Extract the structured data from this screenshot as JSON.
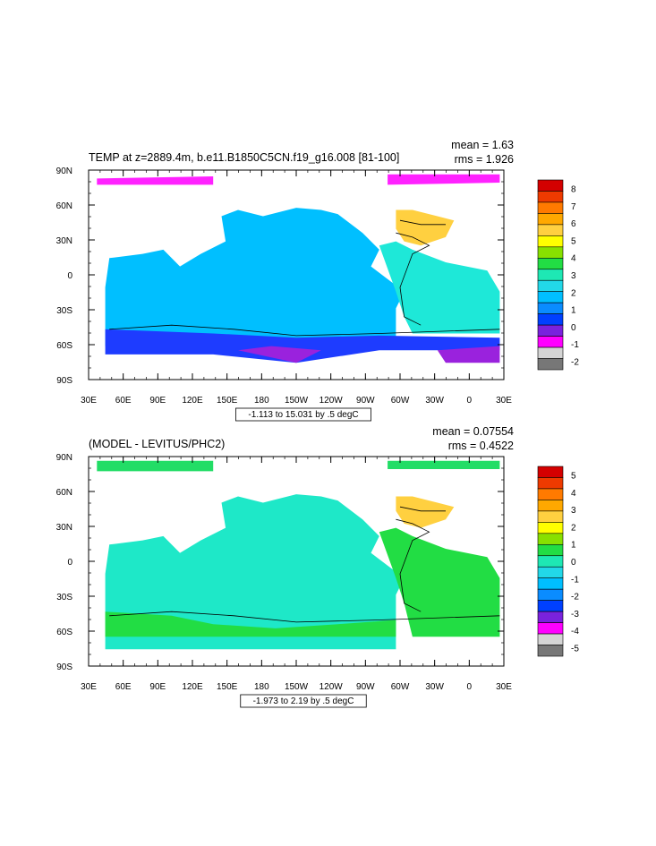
{
  "chart_data": [
    {
      "type": "heatmap",
      "title": "TEMP at z=2889.4m, b.e11.B1850C5CN.f19_g16.008 [81-100]",
      "stats": {
        "mean": "mean = 1.63",
        "rms": "rms = 1.926"
      },
      "range_label": "-1.113 to 15.031 by .5 degC",
      "xticks": [
        "30E",
        "60E",
        "90E",
        "120E",
        "150E",
        "180",
        "150W",
        "120W",
        "90W",
        "60W",
        "30W",
        "0",
        "30E"
      ],
      "yticks": [
        "90N",
        "60N",
        "30N",
        "0",
        "30S",
        "60S",
        "90S"
      ],
      "colorbar": {
        "labels": [
          "8",
          "7",
          "6",
          "5",
          "4",
          "3",
          "2",
          "1",
          "0",
          "-1",
          "-2"
        ],
        "colors": [
          "#d40000",
          "#ee3a00",
          "#ff7a00",
          "#ffa800",
          "#ffd040",
          "#ffff00",
          "#88e000",
          "#22dd44",
          "#1ee8b4",
          "#22d8e8",
          "#00bfff",
          "#0a8cff",
          "#0040ff",
          "#7a22dd",
          "#ff00ff",
          "#d4d4d4",
          "#777777"
        ]
      },
      "regions": [
        {
          "name": "arctic-band",
          "value": -0.8,
          "color": "#ff22ff"
        },
        {
          "name": "pacific-indian-deep",
          "value": 1.5,
          "color": "#00bfff"
        },
        {
          "name": "atlantic-deep",
          "value": 2.5,
          "color": "#1ee8d8"
        },
        {
          "name": "north-atlantic",
          "value": 4.5,
          "color": "#ffd040"
        },
        {
          "name": "southern-ocean",
          "value": 0.0,
          "color": "#1e3cff"
        },
        {
          "name": "antarctic-margin",
          "value": -0.5,
          "color": "#9a22dd"
        }
      ]
    },
    {
      "type": "heatmap",
      "title": "(MODEL - LEVITUS/PHC2)",
      "stats": {
        "mean": "mean = 0.07554",
        "rms": "rms = 0.4522"
      },
      "range_label": "-1.973 to 2.19 by .5 degC",
      "xticks": [
        "30E",
        "60E",
        "90E",
        "120E",
        "150E",
        "180",
        "150W",
        "120W",
        "90W",
        "60W",
        "30W",
        "0",
        "30E"
      ],
      "yticks": [
        "90N",
        "60N",
        "30N",
        "0",
        "30S",
        "60S",
        "90S"
      ],
      "colorbar": {
        "labels": [
          "5",
          "4",
          "3",
          "2",
          "1",
          "0",
          "-1",
          "-2",
          "-3",
          "-4",
          "-5"
        ],
        "colors": [
          "#d40000",
          "#ee3a00",
          "#ff7a00",
          "#ffa800",
          "#ffd040",
          "#ffff00",
          "#88e000",
          "#22dd44",
          "#1ee8b4",
          "#22d8e8",
          "#00bfff",
          "#0a8cff",
          "#0040ff",
          "#7a22dd",
          "#ff00ff",
          "#d4d4d4",
          "#777777"
        ]
      },
      "regions": [
        {
          "name": "arctic-band",
          "value": 0.2,
          "color": "#22dd66"
        },
        {
          "name": "global-deep",
          "value": -0.2,
          "color": "#1ee8c8"
        },
        {
          "name": "atlantic-deep",
          "value": 0.3,
          "color": "#22dd44"
        },
        {
          "name": "north-atlantic",
          "value": 1.5,
          "color": "#ffd040"
        },
        {
          "name": "southern-ocean",
          "value": 0.3,
          "color": "#22dd44"
        }
      ]
    }
  ]
}
